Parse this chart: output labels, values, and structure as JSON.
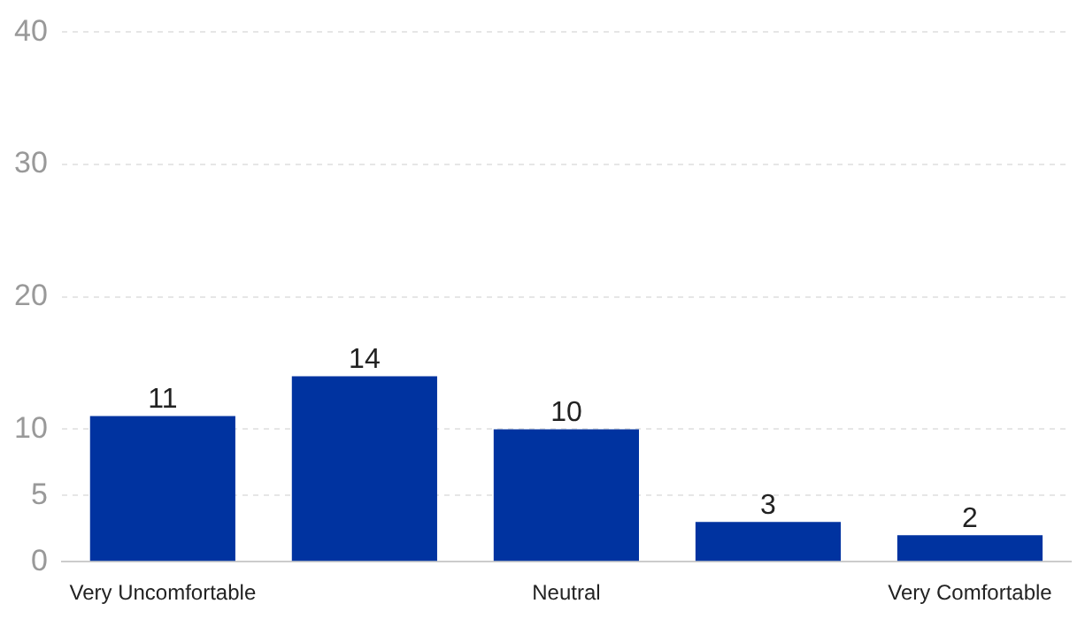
{
  "chart_data": {
    "type": "bar",
    "categories": [
      "Very Uncomfortable",
      null,
      "Neutral",
      null,
      "Very Comfortable"
    ],
    "values": [
      11,
      14,
      10,
      3,
      2
    ],
    "color": "#0033a0",
    "ylim": [
      0,
      40
    ],
    "yticks": [
      0,
      5,
      10,
      20,
      30,
      40
    ],
    "grid": "y",
    "data_labels": true
  }
}
